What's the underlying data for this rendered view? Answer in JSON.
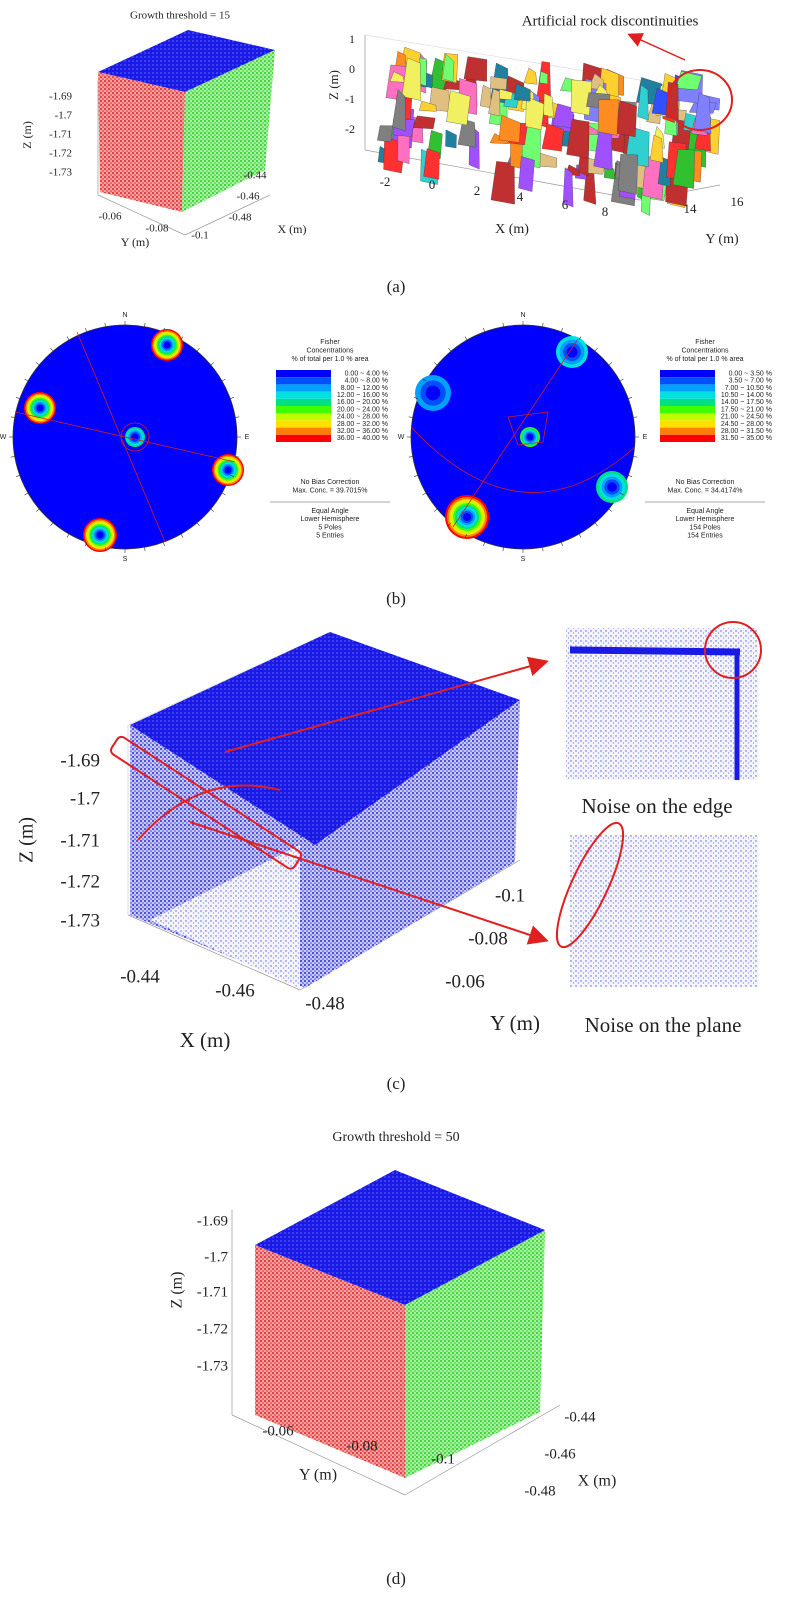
{
  "panel_a": {
    "left": {
      "title": "Growth threshold = 15",
      "z_axis": {
        "label": "Z (m)",
        "ticks": [
          "-1.69",
          "-1.7",
          "-1.71",
          "-1.72",
          "-1.73"
        ]
      },
      "y_axis": {
        "label": "Y (m)",
        "ticks": [
          "-0.06",
          "-0.08",
          "-0.1"
        ]
      },
      "x_axis": {
        "label": "X (m)",
        "ticks": [
          "-0.44",
          "-0.46",
          "-0.48"
        ]
      }
    },
    "right": {
      "annotation": "Artificial rock discontinuities",
      "z_axis": {
        "label": "Z (m)",
        "ticks": [
          "1",
          "0",
          "-1",
          "-2"
        ]
      },
      "x_axis": {
        "label": "X (m)",
        "ticks": [
          "-2",
          "0",
          "2",
          "4",
          "6",
          "8"
        ]
      },
      "y_axis": {
        "label": "Y (m)",
        "ticks": [
          "14",
          "16"
        ]
      }
    },
    "caption": "(a)"
  },
  "panel_b": {
    "stereonets": [
      {
        "directions": [
          "N",
          "E",
          "S",
          "W"
        ],
        "legend": {
          "title_lines": [
            "Fisher",
            "Concentrations",
            "% of total per 1.0 % area"
          ],
          "ranges": [
            "0.00 ~ 4.00 %",
            "4.00 ~ 8.00 %",
            "8.00 ~ 12.00 %",
            "12.00 ~ 16.00 %",
            "16.00 ~ 20.00 %",
            "20.00 ~ 24.00 %",
            "24.00 ~ 28.00 %",
            "28.00 ~ 32.00 %",
            "32.00 ~ 36.00 %",
            "36.00 ~ 40.00 %"
          ],
          "notes": [
            "No Bias Correction",
            "Max. Conc. = 39.7015%"
          ],
          "footer": [
            "Equal Angle",
            "Lower Hemisphere",
            "5 Poles",
            "5 Entries"
          ]
        }
      },
      {
        "directions": [
          "N",
          "E",
          "S",
          "W"
        ],
        "legend": {
          "title_lines": [
            "Fisher",
            "Concentrations",
            "% of total per 1.0 % area"
          ],
          "ranges": [
            "0.00 ~ 3.50 %",
            "3.50 ~ 7.00 %",
            "7.00 ~ 10.50 %",
            "10.50 ~ 14.00 %",
            "14.00 ~ 17.50 %",
            "17.50 ~ 21.00 %",
            "21.00 ~ 24.50 %",
            "24.50 ~ 28.00 %",
            "28.00 ~ 31.50 %",
            "31.50 ~ 35.00 %"
          ],
          "notes": [
            "No Bias Correction",
            "Max. Conc. = 34.4174%"
          ],
          "footer": [
            "Equal Angle",
            "Lower Hemisphere",
            "154 Poles",
            "154 Entries"
          ]
        }
      }
    ],
    "caption": "(b)"
  },
  "panel_c": {
    "z_axis": {
      "label": "Z (m)",
      "ticks": [
        "-1.69",
        "-1.7",
        "-1.71",
        "-1.72",
        "-1.73"
      ]
    },
    "x_axis": {
      "label": "X (m)",
      "ticks": [
        "-0.44",
        "-0.46",
        "-0.48"
      ]
    },
    "y_axis": {
      "label": "Y (m)",
      "ticks": [
        "-0.1",
        "-0.08",
        "-0.06"
      ]
    },
    "insets": [
      "Noise on the edge",
      "Noise on the plane"
    ],
    "caption": "(c)"
  },
  "panel_d": {
    "title": "Growth threshold = 50",
    "z_axis": {
      "label": "Z (m)",
      "ticks": [
        "-1.69",
        "-1.7",
        "-1.71",
        "-1.72",
        "-1.73"
      ]
    },
    "y_axis": {
      "label": "Y (m)",
      "ticks": [
        "-0.06",
        "-0.08",
        "-0.1"
      ]
    },
    "x_axis": {
      "label": "X (m)",
      "ticks": [
        "-0.44",
        "-0.46",
        "-0.48"
      ]
    },
    "caption": "(d)"
  }
}
